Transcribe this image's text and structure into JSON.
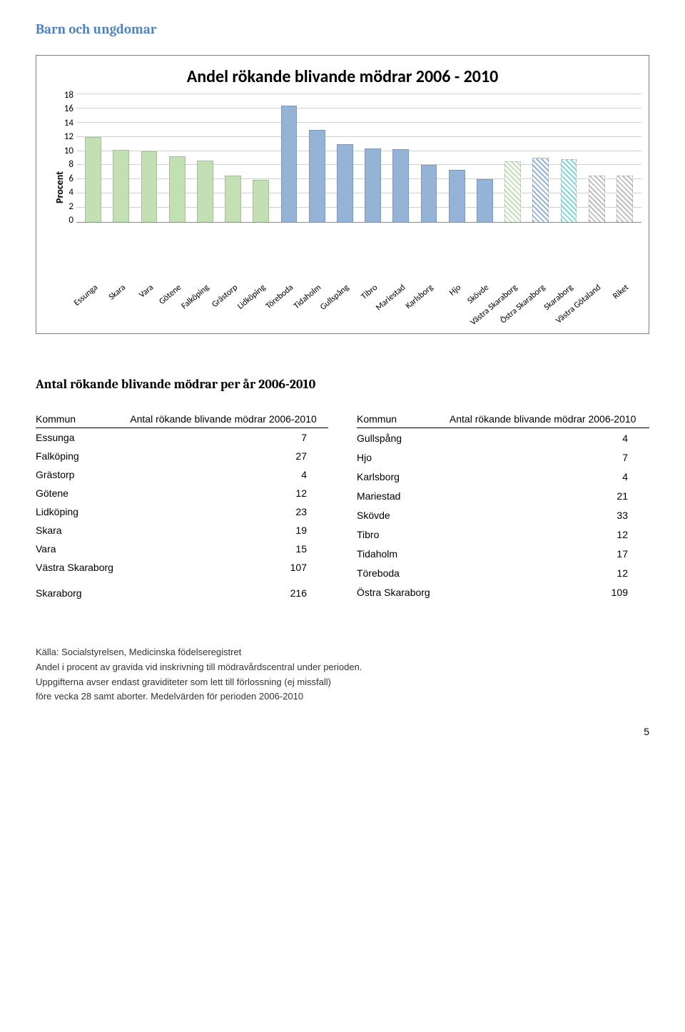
{
  "section_title": "Barn och ungdomar",
  "chart": {
    "type": "bar",
    "title": "Andel rökande blivande mödrar 2006 - 2010",
    "y_label": "Procent",
    "y_max": 18,
    "y_tick_step": 2,
    "y_ticks": [
      "18",
      "16",
      "14",
      "12",
      "10",
      "8",
      "6",
      "4",
      "2",
      "0"
    ],
    "grid_color": "#d0d0d0",
    "bars": [
      {
        "label": "Essunga",
        "value": 12.0,
        "color": "#c3e0b4",
        "pattern": "solid"
      },
      {
        "label": "Skara",
        "value": 10.2,
        "color": "#c3e0b4",
        "pattern": "solid"
      },
      {
        "label": "Vara",
        "value": 10.0,
        "color": "#c3e0b4",
        "pattern": "solid"
      },
      {
        "label": "Götene",
        "value": 9.3,
        "color": "#c3e0b4",
        "pattern": "solid"
      },
      {
        "label": "Falköping",
        "value": 8.6,
        "color": "#c3e0b4",
        "pattern": "solid"
      },
      {
        "label": "Grästorp",
        "value": 6.5,
        "color": "#c3e0b4",
        "pattern": "solid"
      },
      {
        "label": "Lidköping",
        "value": 5.9,
        "color": "#c3e0b4",
        "pattern": "solid"
      },
      {
        "label": "Töreboda",
        "value": 16.4,
        "color": "#95b3d7",
        "pattern": "solid"
      },
      {
        "label": "Tidaholm",
        "value": 13.0,
        "color": "#95b3d7",
        "pattern": "solid"
      },
      {
        "label": "Gullspång",
        "value": 11.0,
        "color": "#95b3d7",
        "pattern": "solid"
      },
      {
        "label": "Tibro",
        "value": 10.4,
        "color": "#95b3d7",
        "pattern": "solid"
      },
      {
        "label": "Mariestad",
        "value": 10.3,
        "color": "#95b3d7",
        "pattern": "solid"
      },
      {
        "label": "Karlsborg",
        "value": 8.0,
        "color": "#95b3d7",
        "pattern": "solid"
      },
      {
        "label": "Hjo",
        "value": 7.3,
        "color": "#95b3d7",
        "pattern": "solid"
      },
      {
        "label": "Skövde",
        "value": 6.0,
        "color": "#95b3d7",
        "pattern": "solid"
      },
      {
        "label": "Västra Skaraborg",
        "value": 8.5,
        "color": "#c3e0b4",
        "pattern": "striped"
      },
      {
        "label": "Östra Skaraborg",
        "value": 9.1,
        "color": "#95b3d7",
        "pattern": "striped"
      },
      {
        "label": "Skaraborg",
        "value": 8.9,
        "color": "#7dd6de",
        "pattern": "striped"
      },
      {
        "label": "Västra Götaland",
        "value": 6.5,
        "color": "#bfbfbf",
        "pattern": "striped"
      },
      {
        "label": "Riket",
        "value": 6.5,
        "color": "#bfbfbf",
        "pattern": "striped"
      }
    ]
  },
  "sub_heading": "Antal rökande blivande mödrar per år 2006-2010",
  "table_header_kommun": "Kommun",
  "table_header_value": "Antal rökande blivande mödrar 2006-2010",
  "table_left": [
    {
      "name": "Essunga",
      "value": "7"
    },
    {
      "name": "Falköping",
      "value": "27"
    },
    {
      "name": "Grästorp",
      "value": "4"
    },
    {
      "name": "Götene",
      "value": "12"
    },
    {
      "name": "Lidköping",
      "value": "23"
    },
    {
      "name": "Skara",
      "value": "19"
    },
    {
      "name": "Vara",
      "value": "15"
    },
    {
      "name": "Västra Skaraborg",
      "value": "107"
    },
    {
      "name": "",
      "value": ""
    },
    {
      "name": "Skaraborg",
      "value": "216"
    }
  ],
  "table_right": [
    {
      "name": "Gullspång",
      "value": "4"
    },
    {
      "name": "Hjo",
      "value": "7"
    },
    {
      "name": "Karlsborg",
      "value": "4"
    },
    {
      "name": "Mariestad",
      "value": "21"
    },
    {
      "name": "Skövde",
      "value": "33"
    },
    {
      "name": "Tibro",
      "value": "12"
    },
    {
      "name": "Tidaholm",
      "value": "17"
    },
    {
      "name": "Töreboda",
      "value": "12"
    },
    {
      "name": "Östra Skaraborg",
      "value": "109"
    }
  ],
  "footer_line1": "Källa: Socialstyrelsen, Medicinska födelseregistret",
  "footer_line2": "Andel i procent av gravida vid inskrivning till mödravårdscentral under perioden.",
  "footer_line3": "Uppgifterna avser endast graviditeter som lett till förlossning (ej missfall)",
  "footer_line4": "före vecka 28 samt aborter. Medelvärden för perioden 2006-2010",
  "page_number": "5"
}
